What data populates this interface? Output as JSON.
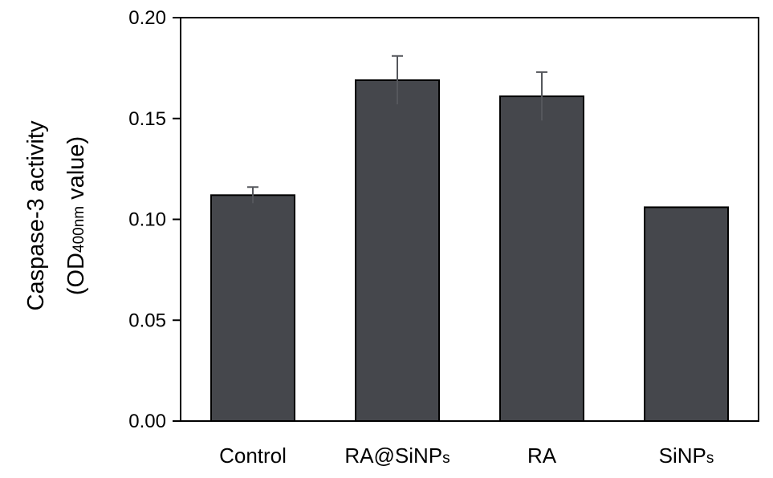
{
  "chart_data": {
    "type": "bar",
    "categories": [
      "Control",
      "RA@SiNPs",
      "RA",
      "SiNPs"
    ],
    "category_subscripts": [
      "",
      "s",
      "",
      "s"
    ],
    "values": [
      0.112,
      0.169,
      0.161,
      0.106
    ],
    "errors": [
      0.004,
      0.012,
      0.012,
      0.0
    ],
    "title": "",
    "xlabel": "",
    "ylabel_line1": "Caspase-3 activity",
    "ylabel_line2_prefix": "(OD",
    "ylabel_line2_sub": "400nm",
    "ylabel_line2_suffix": " value)",
    "ylim": [
      0,
      0.2
    ],
    "yticks": [
      "0.00",
      "0.05",
      "0.10",
      "0.15",
      "0.20"
    ],
    "grid": false,
    "bar_color": "#45474c",
    "axis_color": "#000000"
  }
}
